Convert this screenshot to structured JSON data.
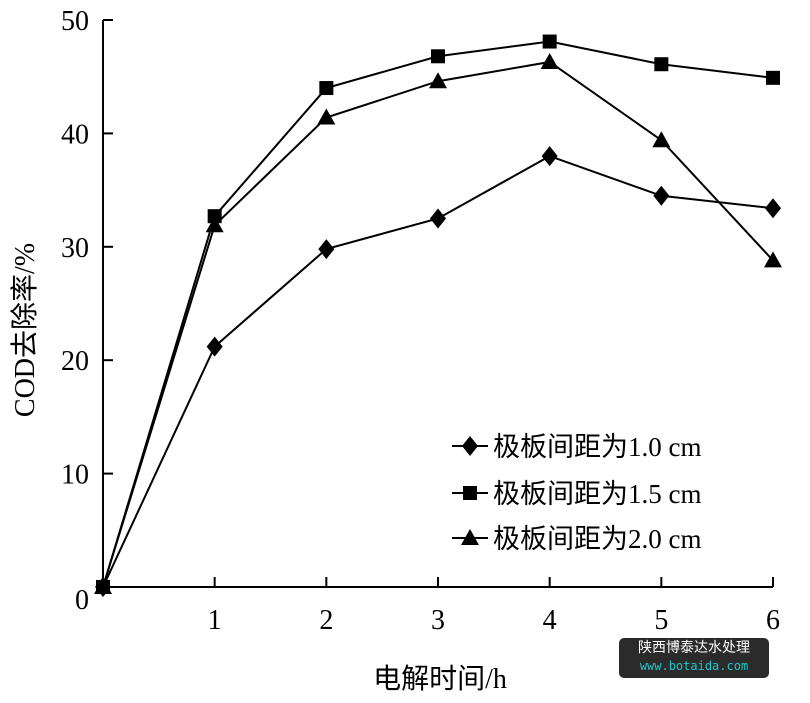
{
  "chart_data": {
    "type": "line",
    "xlabel": "电解时间/h",
    "ylabel": "COD去除率/%",
    "x": [
      0,
      1,
      2,
      3,
      4,
      5,
      6
    ],
    "xlim": [
      0,
      6
    ],
    "ylim": [
      0,
      50
    ],
    "xticks": [
      "1",
      "2",
      "3",
      "4",
      "5",
      "6"
    ],
    "yticks": [
      "0",
      "10",
      "20",
      "30",
      "40",
      "50"
    ],
    "grid": false,
    "legend_position": "bottom-right",
    "series": [
      {
        "name": "极板间距为1.0 cm",
        "marker": "diamond",
        "values": [
          0,
          21.2,
          29.8,
          32.5,
          38.0,
          34.5,
          33.4
        ]
      },
      {
        "name": "极板间距为1.5 cm",
        "marker": "square",
        "values": [
          0,
          32.7,
          44.0,
          46.8,
          48.1,
          46.1,
          44.9
        ]
      },
      {
        "name": "极板间距为2.0 cm",
        "marker": "triangle",
        "values": [
          0,
          31.9,
          41.4,
          44.6,
          46.3,
          39.4,
          28.8
        ]
      }
    ]
  },
  "watermark": {
    "line1": "陕西博泰达水处理",
    "line2": "www.botaida.com"
  }
}
